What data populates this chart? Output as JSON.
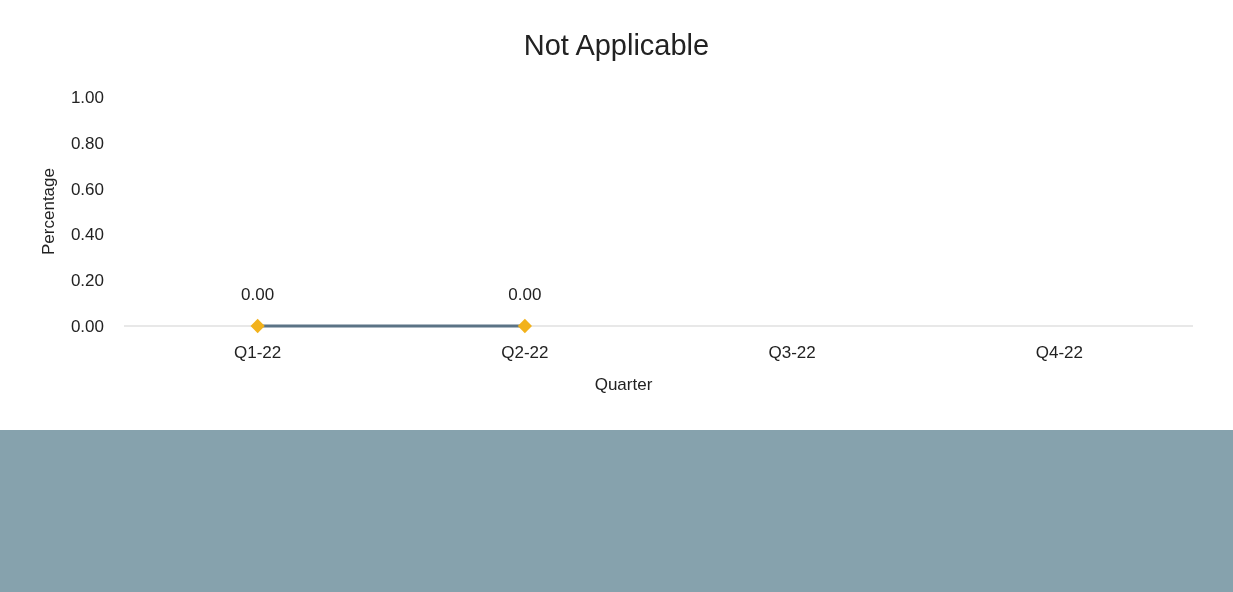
{
  "chart_data": {
    "type": "line",
    "title": "Not Applicable",
    "xlabel": "Quarter",
    "ylabel": "Percentage",
    "categories": [
      "Q1-22",
      "Q2-22",
      "Q3-22",
      "Q4-22"
    ],
    "series": [
      {
        "color": "#5b7385",
        "colors": [
          "#f2b21c",
          "#f2b21c",
          null,
          null
        ],
        "values": [
          0,
          0,
          null,
          null
        ],
        "value_labels": [
          "0.00",
          "0.00",
          null,
          null
        ]
      }
    ],
    "ylim": [
      0,
      1
    ],
    "yticks": [
      {
        "value": 0,
        "label": "0.00"
      },
      {
        "value": 0.2,
        "label": "0.20"
      },
      {
        "value": 0.4,
        "label": "0.40"
      },
      {
        "value": 0.6,
        "label": "0.60"
      },
      {
        "value": 0.8,
        "label": "0.80"
      },
      {
        "value": 1,
        "label": "1.00"
      }
    ],
    "marker": "diamond",
    "grid": false
  }
}
